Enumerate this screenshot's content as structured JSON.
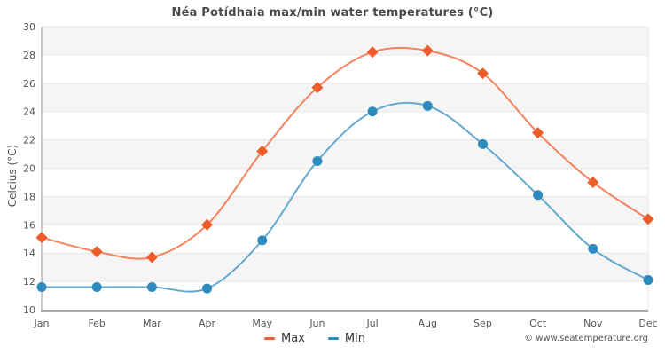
{
  "chart_data": {
    "type": "line",
    "title": "Néa Potídhaia max/min water temperatures (°C)",
    "ylabel": "Celcius (°C)",
    "xlabel": "",
    "categories": [
      "Jan",
      "Feb",
      "Mar",
      "Apr",
      "May",
      "Jun",
      "Jul",
      "Aug",
      "Sep",
      "Oct",
      "Nov",
      "Dec"
    ],
    "series": [
      {
        "name": "Max",
        "marker": "diamond",
        "marker_color": "#f05b2b",
        "line_color": "#f4835e",
        "values": [
          15.1,
          14.1,
          13.7,
          16.0,
          21.2,
          25.7,
          28.2,
          28.3,
          26.7,
          22.5,
          19.0,
          16.4
        ]
      },
      {
        "name": "Min",
        "marker": "circle",
        "marker_color": "#2e8bc0",
        "line_color": "#64a9d2",
        "values": [
          11.6,
          11.6,
          11.6,
          11.5,
          14.9,
          20.5,
          24.0,
          24.4,
          21.7,
          18.1,
          14.3,
          12.1
        ]
      }
    ],
    "ylim": [
      10,
      30
    ],
    "ytick_step": 2,
    "grid": true,
    "band_fill": "#f5f5f5",
    "gridline_color": "#e6e6e6",
    "legend_position": "bottom-center"
  },
  "footer": {
    "copyright": "© www.seatemperature.org"
  }
}
